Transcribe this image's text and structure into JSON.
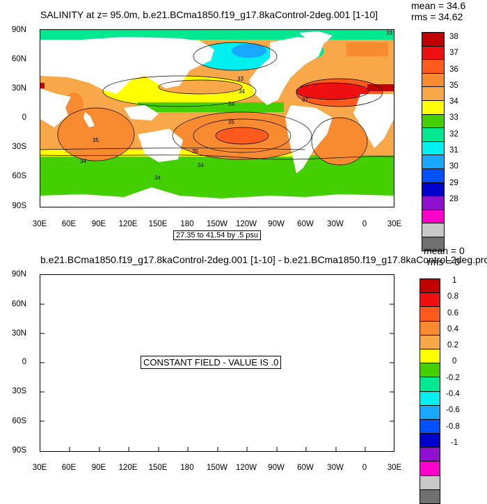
{
  "top_panel": {
    "title": "SALINITY at z=  95.0m, b.e21.BCma1850.f19_g17.8kaControl-2deg.001 [1-10]",
    "mean": "mean = 34.6",
    "rms": "rms = 34.62",
    "contour_info": "27.35 to 41.54 by .5 psu",
    "contour_labels": [
      "33",
      "33",
      "34",
      "37",
      "34",
      "35",
      "35",
      "35",
      "34",
      "34",
      "34"
    ],
    "colorbar_labels": [
      "38",
      "37",
      "36",
      "35",
      "34",
      "33",
      "32",
      "31",
      "30",
      "29",
      "28"
    ]
  },
  "bottom_panel": {
    "title": "b.e21.BCma1850.f19_g17.8kaControl-2deg.001 [1-10] - b.e21.BCma1850.f19_g17.8kaControl-2deg.pro",
    "mean": "mean = 0",
    "rms": "rms = 0",
    "constant_text": "CONSTANT FIELD - VALUE IS .0",
    "colorbar_labels": [
      "1",
      "0.8",
      "0.6",
      "0.4",
      "0.2",
      "0",
      "-0.2",
      "-0.4",
      "-0.6",
      "-0.8",
      "-1"
    ]
  },
  "lat_labels": [
    "90N",
    "60N",
    "30N",
    "0",
    "30S",
    "60S",
    "90S"
  ],
  "lon_labels": [
    "30E",
    "60E",
    "90E",
    "120E",
    "150E",
    "180",
    "150W",
    "120W",
    "90W",
    "60W",
    "30W",
    "0",
    "30E"
  ],
  "palette": {
    "c38": "#c00000",
    "c37": "#ee1010",
    "c36": "#ff5a1e",
    "c35a": "#f88a30",
    "c35": "#f8a848",
    "c34a": "#ffd040",
    "c34": "#ffff00",
    "c33": "#44d000",
    "c32": "#00e890",
    "c31": "#00f0f0",
    "c30": "#18a8ff",
    "c29": "#0050ff",
    "c28": "#0000cc",
    "cv": "#9010d0",
    "cm": "#ff00cc",
    "cg": "#c8c8c8",
    "cd": "#707070"
  }
}
